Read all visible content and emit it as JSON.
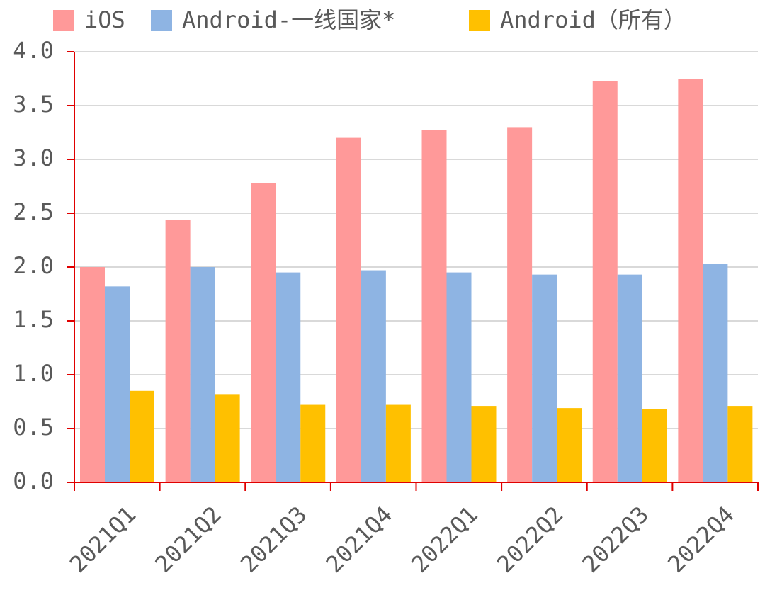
{
  "chart_data": {
    "type": "bar",
    "categories": [
      "2021Q1",
      "2021Q2",
      "2021Q3",
      "2021Q4",
      "2022Q1",
      "2022Q2",
      "2022Q3",
      "2022Q4"
    ],
    "series": [
      {
        "name": "iOS",
        "color": "#ff9999",
        "values": [
          2.0,
          2.44,
          2.78,
          3.2,
          3.27,
          3.3,
          3.73,
          3.75
        ]
      },
      {
        "name": "Android-一线国家*",
        "color": "#8eb4e3",
        "values": [
          1.82,
          2.0,
          1.95,
          1.97,
          1.95,
          1.93,
          1.93,
          2.03
        ]
      },
      {
        "name": "Android（所有）",
        "color": "#ffc000",
        "values": [
          0.85,
          0.82,
          0.72,
          0.72,
          0.71,
          0.69,
          0.68,
          0.71
        ]
      }
    ],
    "ylim": [
      0,
      4.0
    ],
    "yticks": [
      {
        "value": 0,
        "label": "0.0"
      },
      0.5,
      {
        "value": 1,
        "label": "1.0"
      },
      1.5,
      {
        "value": 2,
        "label": "2.0"
      },
      2.5,
      {
        "value": 3,
        "label": "3.0"
      },
      3.5,
      {
        "value": 4,
        "label": "4.0"
      }
    ],
    "grid": true,
    "legend": "top"
  }
}
